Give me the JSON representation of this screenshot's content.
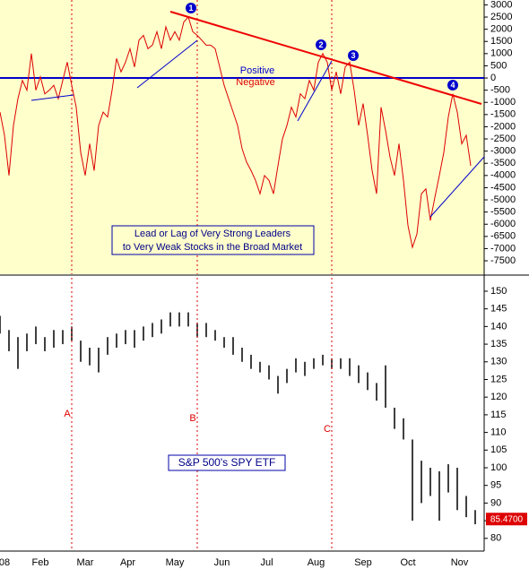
{
  "chart_data": [
    {
      "type": "line",
      "color": "#dd0000",
      "background": "#ffffcc",
      "x": [
        0,
        2,
        4,
        6,
        8,
        10,
        12,
        14,
        16,
        18,
        20,
        22,
        24,
        26,
        28,
        30,
        32,
        34,
        36,
        38,
        40,
        42,
        44,
        46,
        48,
        50,
        52,
        54,
        56,
        58,
        60,
        62,
        64,
        66,
        68,
        70,
        72,
        74,
        76,
        78,
        80,
        82,
        84,
        86,
        88,
        90,
        92,
        94,
        96,
        98,
        100,
        102,
        104,
        106,
        108,
        110,
        112,
        114,
        116,
        118,
        120,
        122,
        124,
        126,
        128,
        130,
        132,
        134,
        136,
        138,
        140,
        142,
        144,
        146,
        148,
        150,
        152,
        154,
        156,
        158,
        160,
        162,
        164,
        166,
        168,
        170,
        172,
        174,
        176,
        178,
        180,
        182,
        184,
        186,
        188,
        190,
        192,
        194,
        196,
        198,
        200,
        202,
        204,
        206,
        208,
        210
      ],
      "values": [
        -1400,
        -2350,
        -4000,
        -1950,
        -850,
        -100,
        -500,
        1000,
        -500,
        50,
        -650,
        -500,
        -300,
        -850,
        -100,
        650,
        -300,
        -1200,
        -3050,
        -4000,
        -2700,
        -3800,
        -1950,
        -1400,
        -1600,
        -500,
        800,
        250,
        650,
        1200,
        450,
        1550,
        1750,
        1200,
        1350,
        1900,
        1200,
        2100,
        1550,
        1900,
        1550,
        2300,
        2500,
        1900,
        1750,
        1550,
        1350,
        1350,
        1200,
        450,
        -300,
        -850,
        -1400,
        -1950,
        -2900,
        -3450,
        -3800,
        -4200,
        -4750,
        -4000,
        -4200,
        -4750,
        -3600,
        -2500,
        -1950,
        -1200,
        -1600,
        -650,
        -850,
        -100,
        -500,
        650,
        1000,
        650,
        -500,
        250,
        -650,
        450,
        650,
        -500,
        -1950,
        -1050,
        -2350,
        -3800,
        -4750,
        -1200,
        -2150,
        -3250,
        -4000,
        -2700,
        -4200,
        -6050,
        -6950,
        -6400,
        -4750,
        -4550,
        -5850,
        -4900,
        -4000,
        -3050,
        -1600,
        -650,
        -1400,
        -2700,
        -2350,
        -3600
      ],
      "xlim": [
        0,
        216
      ],
      "ylim": [
        -8050,
        3200
      ],
      "yticks": [
        3000,
        2500,
        2000,
        1500,
        1000,
        500,
        0,
        -500,
        -1000,
        -1500,
        -2000,
        -2500,
        -3000,
        -3500,
        -4000,
        -4500,
        -5000,
        -5500,
        -6000,
        -6500,
        -7000,
        -7500
      ],
      "baseline": 0,
      "baseline_color": "#0000cc",
      "labels": {
        "positive": "Positive",
        "negative": "Negative"
      },
      "annotation": [
        "Lead or Lag of Very Strong Leaders",
        "to Very Weak Stocks in the Broad Market"
      ],
      "markers": [
        "1",
        "2",
        "3",
        "4"
      ]
    },
    {
      "type": "hilo",
      "color": "#000000",
      "title": "S&P 500's SPY ETF",
      "x": [
        0,
        4,
        8,
        12,
        16,
        20,
        24,
        28,
        32,
        36,
        40,
        44,
        48,
        52,
        56,
        60,
        64,
        68,
        72,
        76,
        80,
        84,
        88,
        92,
        96,
        100,
        104,
        108,
        112,
        116,
        120,
        124,
        128,
        132,
        136,
        140,
        144,
        148,
        152,
        156,
        160,
        164,
        168,
        172,
        176,
        180,
        184,
        188,
        192,
        196,
        200,
        204,
        208,
        212
      ],
      "high": [
        143,
        139,
        137,
        138,
        140,
        137,
        139,
        139,
        140,
        136,
        134,
        134,
        137,
        138,
        139,
        139,
        140,
        141,
        142,
        144,
        144,
        144,
        141,
        141,
        139,
        137,
        137,
        134,
        132,
        130,
        129,
        126,
        128,
        131,
        130,
        131,
        132,
        131,
        131,
        131,
        129,
        127,
        124,
        129,
        117,
        114,
        108,
        102,
        100,
        99,
        101,
        100,
        92,
        88
      ],
      "low": [
        138,
        133,
        128,
        133,
        135,
        133,
        134,
        135,
        136,
        130,
        129,
        127,
        132,
        134,
        135,
        134,
        136,
        137,
        138,
        140,
        140,
        140,
        137,
        137,
        136,
        134,
        132,
        130,
        128,
        127,
        125,
        121,
        124,
        127,
        126,
        128,
        129,
        128,
        128,
        126,
        124,
        122,
        119,
        117,
        111,
        108,
        85,
        90,
        92,
        85,
        93,
        88,
        86,
        84
      ],
      "xlim": [
        0,
        216
      ],
      "ylim": [
        76.4,
        153.8
      ],
      "yticks": [
        150,
        145,
        140,
        135,
        130,
        125,
        120,
        115,
        110,
        105,
        100,
        95,
        90,
        85,
        80
      ],
      "xticks": [
        {
          "value": 2,
          "label": "08"
        },
        {
          "value": 18,
          "label": "Feb"
        },
        {
          "value": 38,
          "label": "Mar"
        },
        {
          "value": 57,
          "label": "Apr"
        },
        {
          "value": 78,
          "label": "May"
        },
        {
          "value": 99,
          "label": "Jun"
        },
        {
          "value": 119,
          "label": "Jul"
        },
        {
          "value": 141,
          "label": "Aug"
        },
        {
          "value": 162,
          "label": "Sep"
        },
        {
          "value": 182,
          "label": "Oct"
        },
        {
          "value": 205,
          "label": "Nov"
        }
      ],
      "last_value": {
        "value": 85.47,
        "label": "85.4700"
      },
      "last_color": "#dd0000",
      "events": [
        {
          "label": "A",
          "x": 32
        },
        {
          "label": "B",
          "x": 88
        },
        {
          "label": "C",
          "x": 148
        }
      ]
    }
  ]
}
